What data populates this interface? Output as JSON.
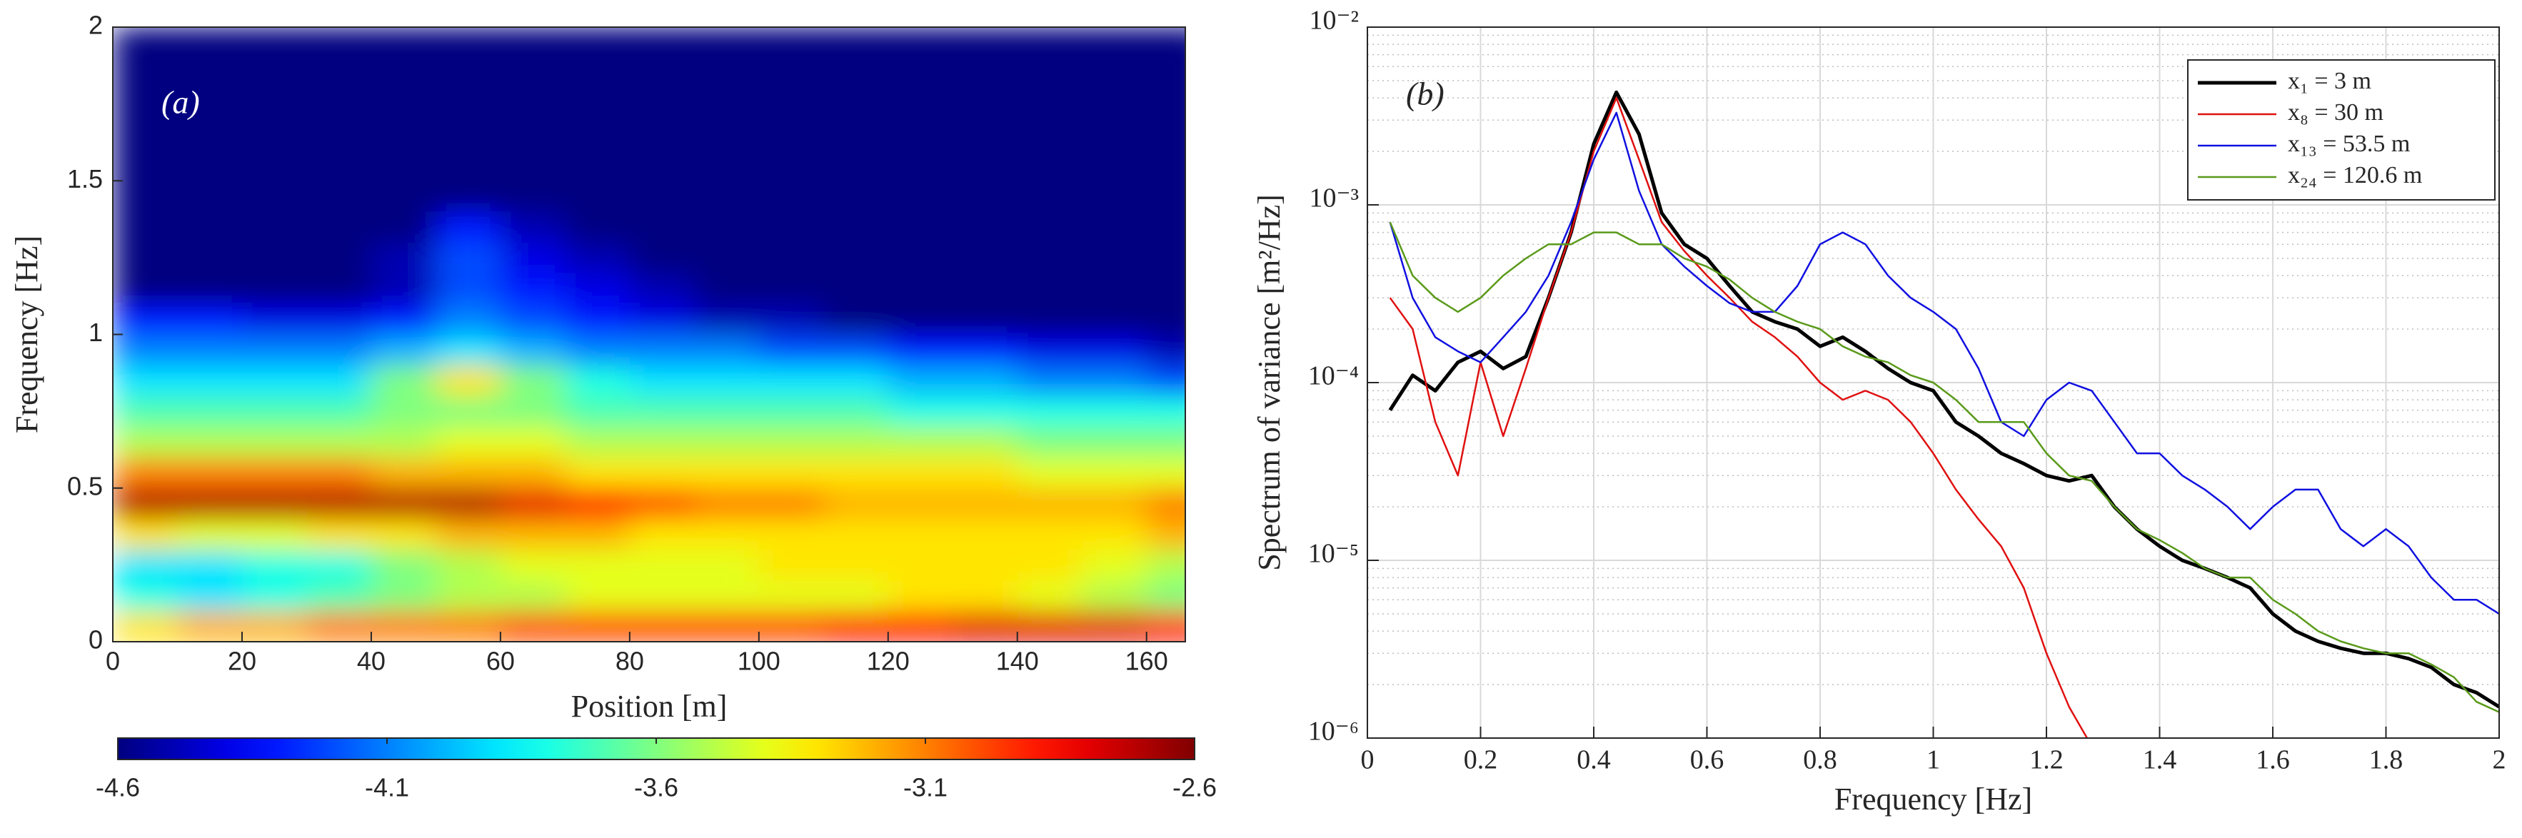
{
  "chart_data": [
    {
      "type": "heatmap",
      "annotation": "(a)",
      "x_label": "Position [m]",
      "y_label": "Frequency [Hz]",
      "x": [
        5,
        15,
        25,
        35,
        45,
        55,
        65,
        75,
        85,
        95,
        105,
        115,
        125,
        135,
        145,
        155,
        165
      ],
      "y": [
        0.05,
        0.15,
        0.25,
        0.35,
        0.45,
        0.55,
        0.65,
        0.75,
        0.85,
        0.95,
        1.05,
        1.15,
        1.25,
        1.35,
        1.45,
        1.55,
        1.65,
        1.75,
        1.85,
        1.95
      ],
      "z": [
        [
          -3.3,
          -3.2,
          -3.2,
          -3.1,
          -3.1,
          -3.1,
          -3.0,
          -3.0,
          -3.0,
          -3.0,
          -3.0,
          -2.9,
          -2.9,
          -2.8,
          -2.8,
          -2.8,
          -2.9
        ],
        [
          -3.8,
          -3.9,
          -3.8,
          -3.7,
          -3.6,
          -3.5,
          -3.5,
          -3.4,
          -3.4,
          -3.4,
          -3.4,
          -3.4,
          -3.3,
          -3.3,
          -3.4,
          -3.5,
          -3.6
        ],
        [
          -3.9,
          -3.9,
          -3.8,
          -3.8,
          -3.6,
          -3.5,
          -3.4,
          -3.4,
          -3.4,
          -3.4,
          -3.3,
          -3.3,
          -3.3,
          -3.3,
          -3.3,
          -3.4,
          -3.5
        ],
        [
          -3.3,
          -3.4,
          -3.4,
          -3.3,
          -3.3,
          -3.2,
          -3.2,
          -3.2,
          -3.3,
          -3.3,
          -3.3,
          -3.3,
          -3.3,
          -3.3,
          -3.3,
          -3.3,
          -3.2
        ],
        [
          -2.7,
          -2.7,
          -2.7,
          -2.7,
          -2.7,
          -2.7,
          -2.8,
          -2.9,
          -3.0,
          -3.1,
          -3.1,
          -3.2,
          -3.2,
          -3.2,
          -3.2,
          -3.2,
          -3.1
        ],
        [
          -3.1,
          -3.1,
          -3.1,
          -3.1,
          -3.2,
          -3.2,
          -3.2,
          -3.3,
          -3.3,
          -3.3,
          -3.3,
          -3.3,
          -3.3,
          -3.3,
          -3.4,
          -3.4,
          -3.4
        ],
        [
          -3.5,
          -3.5,
          -3.5,
          -3.5,
          -3.5,
          -3.4,
          -3.4,
          -3.5,
          -3.5,
          -3.5,
          -3.5,
          -3.5,
          -3.5,
          -3.5,
          -3.6,
          -3.6,
          -3.6
        ],
        [
          -3.7,
          -3.7,
          -3.7,
          -3.7,
          -3.6,
          -3.6,
          -3.6,
          -3.7,
          -3.7,
          -3.7,
          -3.7,
          -3.7,
          -3.8,
          -3.8,
          -3.8,
          -3.8,
          -3.8
        ],
        [
          -3.9,
          -3.9,
          -3.9,
          -3.9,
          -3.6,
          -3.3,
          -3.6,
          -3.8,
          -3.9,
          -3.9,
          -3.9,
          -3.9,
          -4.0,
          -4.0,
          -4.1,
          -4.1,
          -4.2
        ],
        [
          -4.1,
          -4.1,
          -4.1,
          -4.1,
          -4.0,
          -3.9,
          -4.0,
          -4.1,
          -4.1,
          -4.1,
          -4.2,
          -4.2,
          -4.3,
          -4.3,
          -4.4,
          -4.4,
          -4.5
        ],
        [
          -4.3,
          -4.3,
          -4.4,
          -4.4,
          -4.3,
          -4.1,
          -4.2,
          -4.3,
          -4.4,
          -4.5,
          -4.5,
          -4.6,
          -4.6,
          -4.6,
          -4.6,
          -4.6,
          -4.6
        ],
        [
          -4.6,
          -4.6,
          -4.6,
          -4.6,
          -4.5,
          -4.2,
          -4.3,
          -4.4,
          -4.5,
          -4.6,
          -4.6,
          -4.6,
          -4.6,
          -4.6,
          -4.6,
          -4.6,
          -4.6
        ],
        [
          -4.6,
          -4.6,
          -4.6,
          -4.6,
          -4.5,
          -4.2,
          -4.4,
          -4.5,
          -4.6,
          -4.6,
          -4.6,
          -4.6,
          -4.6,
          -4.6,
          -4.6,
          -4.6,
          -4.6
        ],
        [
          -4.6,
          -4.6,
          -4.6,
          -4.6,
          -4.6,
          -4.3,
          -4.5,
          -4.6,
          -4.6,
          -4.6,
          -4.6,
          -4.6,
          -4.6,
          -4.6,
          -4.6,
          -4.6,
          -4.6
        ],
        [
          -4.6,
          -4.6,
          -4.6,
          -4.6,
          -4.6,
          -4.6,
          -4.6,
          -4.6,
          -4.6,
          -4.6,
          -4.6,
          -4.6,
          -4.6,
          -4.6,
          -4.6,
          -4.6,
          -4.6
        ],
        [
          -4.6,
          -4.6,
          -4.6,
          -4.6,
          -4.6,
          -4.6,
          -4.6,
          -4.6,
          -4.6,
          -4.6,
          -4.6,
          -4.6,
          -4.6,
          -4.6,
          -4.6,
          -4.6,
          -4.6
        ],
        [
          -4.6,
          -4.6,
          -4.6,
          -4.6,
          -4.6,
          -4.6,
          -4.6,
          -4.6,
          -4.6,
          -4.6,
          -4.6,
          -4.6,
          -4.6,
          -4.6,
          -4.6,
          -4.6,
          -4.6
        ],
        [
          -4.6,
          -4.6,
          -4.6,
          -4.6,
          -4.6,
          -4.6,
          -4.6,
          -4.6,
          -4.6,
          -4.6,
          -4.6,
          -4.6,
          -4.6,
          -4.6,
          -4.6,
          -4.6,
          -4.6
        ],
        [
          -4.6,
          -4.6,
          -4.6,
          -4.6,
          -4.6,
          -4.6,
          -4.6,
          -4.6,
          -4.6,
          -4.6,
          -4.6,
          -4.6,
          -4.6,
          -4.6,
          -4.6,
          -4.6,
          -4.6
        ],
        [
          -4.6,
          -4.6,
          -4.6,
          -4.6,
          -4.6,
          -4.6,
          -4.6,
          -4.6,
          -4.6,
          -4.6,
          -4.6,
          -4.6,
          -4.6,
          -4.6,
          -4.6,
          -4.6,
          -4.6
        ]
      ],
      "xlim": [
        0,
        166
      ],
      "ylim": [
        0,
        2
      ],
      "xticks": [
        0,
        20,
        40,
        60,
        80,
        100,
        120,
        140,
        160
      ],
      "yticks": [
        0,
        0.5,
        1,
        1.5,
        2
      ],
      "colormap": "jet",
      "clim": [
        -4.6,
        -2.6
      ],
      "colorbar": "bottom",
      "colorbar_ticks": [
        -4.6,
        -4.1,
        -3.6,
        -3.1,
        -2.6
      ]
    },
    {
      "type": "line",
      "annotation": "(b)",
      "x_label": "Frequency [Hz]",
      "y_label": "Spectrum of variance [m²/Hz]",
      "x": [
        0.04,
        0.08,
        0.12,
        0.16,
        0.2,
        0.24,
        0.28,
        0.32,
        0.36,
        0.4,
        0.44,
        0.48,
        0.52,
        0.56,
        0.6,
        0.64,
        0.68,
        0.72,
        0.76,
        0.8,
        0.84,
        0.88,
        0.92,
        0.96,
        1.0,
        1.04,
        1.08,
        1.12,
        1.16,
        1.2,
        1.24,
        1.28,
        1.32,
        1.36,
        1.4,
        1.44,
        1.48,
        1.52,
        1.56,
        1.6,
        1.64,
        1.68,
        1.72,
        1.76,
        1.8,
        1.84,
        1.88,
        1.92,
        1.96,
        2.0
      ],
      "series": [
        {
          "name": "x₁ = 3 m",
          "color": "#000000",
          "width": 5,
          "values": [
            7e-05,
            0.00011,
            9e-05,
            0.00013,
            0.00015,
            0.00012,
            0.00014,
            0.0003,
            0.0007,
            0.0022,
            0.0043,
            0.0025,
            0.0009,
            0.0006,
            0.0005,
            0.00035,
            0.00025,
            0.00022,
            0.0002,
            0.00016,
            0.00018,
            0.00015,
            0.00012,
            0.0001,
            9e-05,
            6e-05,
            5e-05,
            4e-05,
            3.5e-05,
            3e-05,
            2.8e-05,
            3e-05,
            2e-05,
            1.5e-05,
            1.2e-05,
            1e-05,
            9e-06,
            8e-06,
            7e-06,
            5e-06,
            4e-06,
            3.5e-06,
            3.2e-06,
            3e-06,
            3e-06,
            2.8e-06,
            2.5e-06,
            2e-06,
            1.8e-06,
            1.5e-06
          ]
        },
        {
          "name": "x₈ = 30 m",
          "color": "#e01010",
          "width": 2.5,
          "values": [
            0.0003,
            0.0002,
            6e-05,
            3e-05,
            0.00013,
            5e-05,
            0.00012,
            0.0003,
            0.0007,
            0.002,
            0.004,
            0.0018,
            0.0008,
            0.00055,
            0.0004,
            0.0003,
            0.00022,
            0.00018,
            0.00014,
            0.0001,
            8e-05,
            9e-05,
            8e-05,
            6e-05,
            4e-05,
            2.5e-05,
            1.7e-05,
            1.2e-05,
            7e-06,
            3e-06,
            1.5e-06,
            9e-07,
            null,
            null,
            null,
            null,
            null,
            null,
            null,
            null,
            null,
            null,
            null,
            null,
            null,
            null,
            null,
            null,
            null,
            null
          ]
        },
        {
          "name": "x₁₃ = 53.5 m",
          "color": "#1010e0",
          "width": 2.5,
          "values": [
            0.0008,
            0.0003,
            0.00018,
            0.00015,
            0.00013,
            0.00018,
            0.00025,
            0.0004,
            0.0008,
            0.0018,
            0.0033,
            0.0012,
            0.0006,
            0.00045,
            0.00035,
            0.00028,
            0.00025,
            0.00025,
            0.00035,
            0.0006,
            0.0007,
            0.0006,
            0.0004,
            0.0003,
            0.00025,
            0.0002,
            0.00012,
            6e-05,
            5e-05,
            8e-05,
            0.0001,
            9e-05,
            6e-05,
            4e-05,
            4e-05,
            3e-05,
            2.5e-05,
            2e-05,
            1.5e-05,
            2e-05,
            2.5e-05,
            2.5e-05,
            1.5e-05,
            1.2e-05,
            1.5e-05,
            1.2e-05,
            8e-06,
            6e-06,
            6e-06,
            5e-06
          ]
        },
        {
          "name": "x₂₄ = 120.6 m",
          "color": "#5a9a1a",
          "width": 2.5,
          "values": [
            0.0008,
            0.0004,
            0.0003,
            0.00025,
            0.0003,
            0.0004,
            0.0005,
            0.0006,
            0.0006,
            0.0007,
            0.0007,
            0.0006,
            0.0006,
            0.0005,
            0.00045,
            0.00038,
            0.0003,
            0.00025,
            0.00022,
            0.0002,
            0.00016,
            0.00014,
            0.00013,
            0.00011,
            0.0001,
            8e-05,
            6e-05,
            6e-05,
            6e-05,
            4e-05,
            3e-05,
            2.8e-05,
            2e-05,
            1.5e-05,
            1.3e-05,
            1.1e-05,
            9e-06,
            8e-06,
            8e-06,
            6e-06,
            5e-06,
            4e-06,
            3.5e-06,
            3.2e-06,
            3e-06,
            3e-06,
            2.6e-06,
            2.2e-06,
            1.6e-06,
            1.4e-06
          ]
        }
      ],
      "xlim": [
        0,
        2
      ],
      "ylim": [
        1e-06,
        0.01
      ],
      "log_y": true,
      "xticks": [
        0,
        0.2,
        0.4,
        0.6,
        0.8,
        1,
        1.2,
        1.4,
        1.6,
        1.8,
        2
      ],
      "yticks": [
        {
          "value": 1e-06,
          "label": "10⁻⁶"
        },
        {
          "value": 1e-05,
          "label": "10⁻⁵"
        },
        {
          "value": 0.0001,
          "label": "10⁻⁴"
        },
        {
          "value": 0.001,
          "label": "10⁻³"
        },
        {
          "value": 0.01,
          "label": "10⁻²"
        }
      ],
      "grid": true,
      "minor_grid": true,
      "legend": "upper right"
    }
  ]
}
